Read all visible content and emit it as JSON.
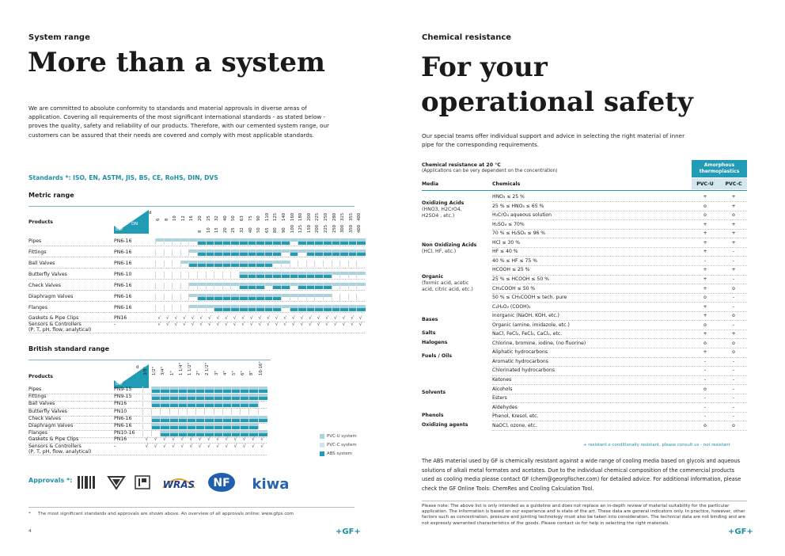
{
  "left": {
    "section_label": "System range",
    "headline": "More than a system",
    "intro": "We are committed to absolute conformity to standards and material approvals in diverse areas of application. Covering all requirements of the most significant international standards - as stated below - proves the quality, safety and reliability of our products. Therefore, with our cemented system range, our customers can be assured that their needs are covered and comply with most applicable standards.",
    "standards": "Standards *:  ISO, EN, ASTM, JIS, BS, CE, RoHS, DIN, DVS",
    "metric": {
      "title": "Metric range",
      "products_label": "Products",
      "d_label": "d",
      "dn_label": "DN",
      "bar_label": "bar",
      "d_values": [
        "6",
        "8",
        "10",
        "12",
        "16",
        "20",
        "25",
        "32",
        "40",
        "50",
        "63",
        "75",
        "90",
        "110",
        "125",
        "140",
        "160",
        "180",
        "200",
        "225",
        "250",
        "280",
        "315",
        "355",
        "400"
      ],
      "dn_values": [
        "8",
        "10",
        "15",
        "20",
        "25",
        "32",
        "40",
        "50",
        "65",
        "80",
        "90",
        "100",
        "125",
        "150",
        "200",
        "225",
        "250",
        "300",
        "350",
        "400"
      ],
      "rows": [
        {
          "name": "Pipes",
          "pn": "PN6-16",
          "pvc": [
            1,
            1,
            1,
            1,
            1,
            1,
            1,
            1,
            1,
            1,
            1,
            1,
            1,
            1,
            1,
            1,
            1,
            1,
            1,
            1,
            1,
            1,
            1,
            1,
            1
          ],
          "abs": [
            0,
            0,
            0,
            0,
            0,
            1,
            1,
            1,
            1,
            1,
            1,
            1,
            1,
            1,
            1,
            1,
            0,
            1,
            1,
            1,
            1,
            1,
            1,
            1,
            1
          ]
        },
        {
          "name": "Fittings",
          "pn": "PN6-16",
          "pvc": [
            0,
            0,
            0,
            0,
            1,
            1,
            1,
            1,
            1,
            1,
            1,
            1,
            1,
            1,
            1,
            1,
            1,
            1,
            1,
            1,
            1,
            1,
            1,
            1,
            1
          ],
          "abs": [
            0,
            0,
            0,
            0,
            0,
            1,
            1,
            1,
            1,
            1,
            1,
            1,
            1,
            1,
            1,
            0,
            1,
            0,
            1,
            1,
            1,
            1,
            1,
            1,
            1
          ]
        },
        {
          "name": "Ball Valves",
          "pn": "PN6-16",
          "pvc": [
            0,
            0,
            0,
            1,
            1,
            1,
            1,
            1,
            1,
            1,
            1,
            1,
            1,
            1,
            1,
            1,
            0,
            0,
            0,
            0,
            0,
            0,
            0,
            0,
            0
          ],
          "abs": [
            0,
            0,
            0,
            0,
            1,
            1,
            1,
            1,
            1,
            1,
            1,
            1,
            1,
            1,
            0,
            0,
            0,
            0,
            0,
            0,
            0,
            0,
            0,
            0,
            0
          ]
        },
        {
          "name": "Butterfly Valves",
          "pn": "PN6-10",
          "pvc": [
            0,
            0,
            0,
            0,
            0,
            0,
            0,
            0,
            0,
            0,
            1,
            1,
            1,
            1,
            1,
            1,
            1,
            1,
            1,
            1,
            1,
            1,
            1,
            1,
            1
          ],
          "abs": [
            0,
            0,
            0,
            0,
            0,
            0,
            0,
            0,
            0,
            0,
            1,
            1,
            1,
            1,
            1,
            1,
            1,
            1,
            1,
            1,
            1,
            0,
            0,
            0,
            0
          ]
        },
        {
          "name": "Check Valves",
          "pn": "PN6-16",
          "pvc": [
            0,
            0,
            0,
            0,
            1,
            1,
            1,
            1,
            1,
            1,
            1,
            1,
            1,
            1,
            1,
            1,
            1,
            1,
            1,
            1,
            1,
            1,
            1,
            1,
            1
          ],
          "abs": [
            0,
            0,
            0,
            0,
            0,
            0,
            0,
            0,
            0,
            0,
            1,
            1,
            1,
            0,
            1,
            1,
            0,
            1,
            1,
            1,
            1,
            0,
            0,
            0,
            0
          ]
        },
        {
          "name": "Diaphragm Valves",
          "pn": "PN6-16",
          "pvc": [
            0,
            0,
            0,
            0,
            1,
            1,
            1,
            1,
            1,
            1,
            1,
            1,
            1,
            1,
            1,
            1,
            1,
            1,
            1,
            1,
            1,
            0,
            0,
            0,
            0
          ],
          "abs": [
            0,
            0,
            0,
            0,
            0,
            1,
            1,
            1,
            1,
            1,
            1,
            1,
            1,
            1,
            1,
            0,
            0,
            0,
            0,
            0,
            0,
            0,
            0,
            0,
            0
          ]
        },
        {
          "name": "Flanges",
          "pn": "PN6-16",
          "pvc": [
            0,
            0,
            0,
            0,
            1,
            1,
            1,
            1,
            1,
            1,
            1,
            1,
            1,
            1,
            1,
            1,
            1,
            1,
            1,
            1,
            1,
            1,
            1,
            1,
            1
          ],
          "abs": [
            0,
            0,
            0,
            0,
            0,
            0,
            0,
            1,
            1,
            1,
            1,
            1,
            1,
            1,
            1,
            0,
            1,
            1,
            1,
            1,
            1,
            1,
            1,
            1,
            1
          ]
        }
      ],
      "gaskets": {
        "name": "Gaskets & Pipe Clips",
        "pn": "PN16"
      },
      "sensors": {
        "name": "Sensors & Controllers",
        "name2": "(P, T, pH, flow, analytical)",
        "pn": "-"
      }
    },
    "british": {
      "title": "British standard range",
      "products_label": "Products",
      "d_label": "d",
      "bar_label": "bar",
      "d_values": [
        "3/8\"",
        "1/2\"",
        "3/4\"",
        "1\"",
        "1 1/4\"",
        "1 1/2\"",
        "2\"",
        "2 1/2\"",
        "3\"",
        "4\"",
        "5\"",
        "6\"",
        "8\"",
        "10-16\""
      ],
      "rows": [
        {
          "name": "Pipes",
          "pn": "PN9-15",
          "pvc": [
            0,
            1,
            1,
            1,
            1,
            1,
            1,
            1,
            1,
            1,
            1,
            1,
            1,
            1
          ],
          "abs": [
            0,
            1,
            1,
            1,
            1,
            1,
            1,
            1,
            1,
            1,
            1,
            1,
            1,
            1
          ]
        },
        {
          "name": "Fittings",
          "pn": "PN9-15",
          "pvc": [
            0,
            1,
            1,
            1,
            1,
            1,
            1,
            1,
            1,
            1,
            1,
            1,
            1,
            1
          ],
          "abs": [
            0,
            1,
            1,
            1,
            1,
            1,
            1,
            1,
            1,
            1,
            1,
            1,
            1,
            1
          ]
        },
        {
          "name": "Ball Valves",
          "pn": "PN16",
          "pvc": [
            0,
            1,
            1,
            1,
            1,
            1,
            1,
            1,
            1,
            1,
            1,
            1,
            1,
            0
          ],
          "abs": [
            0,
            1,
            1,
            1,
            1,
            1,
            1,
            1,
            1,
            1,
            1,
            1,
            1,
            0
          ]
        },
        {
          "name": "Butterfly Valves",
          "pn": "PN10",
          "pvc": [
            0,
            0,
            0,
            0,
            0,
            0,
            0,
            0,
            0,
            0,
            0,
            0,
            0,
            0
          ],
          "abs": [
            0,
            0,
            0,
            0,
            0,
            0,
            0,
            0,
            0,
            0,
            0,
            0,
            0,
            0
          ]
        },
        {
          "name": "Check Valves",
          "pn": "PN6-16",
          "pvc": [
            0,
            1,
            1,
            1,
            1,
            1,
            1,
            1,
            1,
            1,
            1,
            1,
            1,
            1
          ],
          "abs": [
            0,
            1,
            1,
            1,
            1,
            1,
            1,
            1,
            1,
            1,
            1,
            1,
            1,
            1
          ]
        },
        {
          "name": "Diaphragm Valves",
          "pn": "PN6-16",
          "pvc": [
            0,
            1,
            1,
            1,
            1,
            1,
            1,
            1,
            1,
            1,
            1,
            1,
            1,
            0
          ],
          "abs": [
            0,
            1,
            1,
            1,
            1,
            1,
            1,
            1,
            1,
            1,
            1,
            1,
            1,
            0
          ]
        },
        {
          "name": "Flanges",
          "pn": "PN10-16",
          "pvc": [
            0,
            0,
            1,
            1,
            1,
            1,
            1,
            1,
            1,
            1,
            1,
            1,
            1,
            1
          ],
          "abs": [
            0,
            0,
            1,
            1,
            1,
            1,
            1,
            1,
            1,
            1,
            1,
            1,
            1,
            1
          ]
        }
      ],
      "gaskets": {
        "name": "Gaskets & Pipe Clips",
        "pn": "PN16"
      },
      "sensors": {
        "name": "Sensors & Controllers",
        "name2": "(P, T, pH, flow, analytical)",
        "pn": "-"
      }
    },
    "check": "√",
    "legend": [
      {
        "label": "PVC-U system",
        "color": "#a9d3de"
      },
      {
        "label": "PVC-C system",
        "color": "#cde6ec"
      },
      {
        "label": "ABS system",
        "color": "#229bb5"
      }
    ],
    "approvals_label": "Approvals *:",
    "logos": [
      "kiwa",
      "NF",
      "WRAS",
      "dt"
    ],
    "footnote_mark": "*",
    "footnote": "The most significant standards and approvals are shown above. An overview of all approvals online: www.gfps.com",
    "page_number": "4",
    "brand": "+GF+"
  },
  "right": {
    "section_label": "Chemical resistance",
    "headline_line1": "For your",
    "headline_line2": "operational safety",
    "intro": "Our special teams offer individual  support and advice in selecting the right material of inner pipe for the corresponding requirements.",
    "table_title": "Chemical resistance at 20 °C",
    "table_subtitle": "(Applications can be very dependent on the concentration)",
    "group_header_line1": "Amorphous",
    "group_header_line2": "thermoplastics",
    "col_media": "Media",
    "col_chemicals": "Chemicals",
    "col_pvcu": "PVC-U",
    "col_pvcc": "PVC-C",
    "rows": [
      {
        "chem": "HNO₃ ≤ 25 %",
        "u": "+",
        "c": "+"
      },
      {
        "chem": "25 % ≤ HNO₃ ≤ 65 %",
        "u": "o",
        "c": "+"
      },
      {
        "chem": "H₂CrO₄ aqueous solution",
        "u": "o",
        "c": "o"
      },
      {
        "chem": "H₂SO₄ ≤ 70%",
        "u": "+",
        "c": "+"
      },
      {
        "chem": "70 % ≤ H₂SO₄ ≤ 96 %",
        "u": "+",
        "c": "+"
      },
      {
        "chem": "HCl ≤ 30 %",
        "u": "+",
        "c": "+"
      },
      {
        "chem": "HF ≤ 40 %",
        "u": "+",
        "c": "-"
      },
      {
        "chem": "40 % ≤ HF ≤ 75 %",
        "u": "-",
        "c": "-"
      },
      {
        "chem": "HCOOH ≤ 25 %",
        "u": "+",
        "c": "+"
      },
      {
        "chem": "25 % ≤ HCOOH ≤ 50 %",
        "u": "+",
        "c": "-"
      },
      {
        "chem": "CH₃COOH ≤ 50 %",
        "u": "+",
        "c": "o"
      },
      {
        "chem": "50 % ≤ CH₃COOH ≤ tech. pure",
        "u": "o",
        "c": "-"
      },
      {
        "chem": "C₂H₂O₄ (COOH)₂",
        "u": "+",
        "c": "-"
      },
      {
        "chem": "Inorganic (NaOH, KOH, etc.)",
        "u": "+",
        "c": "o"
      },
      {
        "chem": "Organic (amine, imidazole, etc.)",
        "u": "o",
        "c": "-"
      },
      {
        "chem": "NaCl, FeCl₂, FeCl₃, CaCl₂, etc.",
        "u": "+",
        "c": "+"
      },
      {
        "chem": "Chlorine, bromine, iodine, (no fluorine)",
        "u": "o",
        "c": "o"
      },
      {
        "chem": "Aliphatic hydrocarbons",
        "u": "+",
        "c": "o"
      },
      {
        "chem": "Aromatic hydrocarbons",
        "u": "-",
        "c": "-"
      },
      {
        "chem": "Chlorinated hydrocarbons",
        "u": "-",
        "c": "-"
      },
      {
        "chem": "Ketones",
        "u": "-",
        "c": "-"
      },
      {
        "chem": "Alcohols",
        "u": "o",
        "c": "-"
      },
      {
        "chem": "Esters",
        "u": "-",
        "c": "-"
      },
      {
        "chem": "Aldehydes",
        "u": "-",
        "c": "-"
      },
      {
        "chem": "Phenol, Kresol, etc.",
        "u": "-",
        "c": "-"
      },
      {
        "chem": "NaOCl, ozone, etc.",
        "u": "o",
        "c": "o"
      }
    ],
    "media": [
      {
        "row": 1,
        "title": "Oxidizing Acids",
        "sub": [
          "(HNO3, H2CrO4,",
          "H2SO4 , etc.)"
        ]
      },
      {
        "row": 5.6,
        "title": "Non Oxidizing Acids",
        "sub": [
          "(HCl, HF, etc.)"
        ]
      },
      {
        "row": 9.1,
        "title": "Organic",
        "sub": [
          "(formic acid, acetic",
          "acid, citric acid, etc.)"
        ]
      },
      {
        "row": 13.5,
        "title": "Bases",
        "sub": []
      },
      {
        "row": 15,
        "title": "Salts",
        "sub": []
      },
      {
        "row": 16,
        "title": "Halogens",
        "sub": []
      },
      {
        "row": 17.5,
        "title": "Fuels / Oils",
        "sub": []
      },
      {
        "row": 21.5,
        "title": "Solvents",
        "sub": []
      },
      {
        "row": 24,
        "title": "Phenols",
        "sub": []
      },
      {
        "row": 25,
        "title": "Oxidizing agents",
        "sub": []
      }
    ],
    "legend": "+  resistant     o  conditionally resistant, please consult us     -  not resistant",
    "paragraph": "The ABS material used by GF is chemically resistant against a wide range of cooling media based on glycols and aqueous solutions of alkali metal formates and acetates. Due to the individual chemical composition of the commercial products used as cooling media please contact GF (chem@georgfischer.com) for detailed advice. For additional information, please check the GF Online Tools: ChemRes and Cooling Calculation Tool.",
    "note": "Please note: The above list is only intended as a guideline and does not replace an in-depth review of material suitability for the particular application. The information is based on our experience and is state of the art. These data are general indicators only. In practice, however, other factors such as concentration, pressure and jointing technology must also be taken into consideration. The technical data are not binding and are not expressly warranted characteristics of the goods. Please contact us for help in selecting the right materials.",
    "brand": "+GF+"
  }
}
